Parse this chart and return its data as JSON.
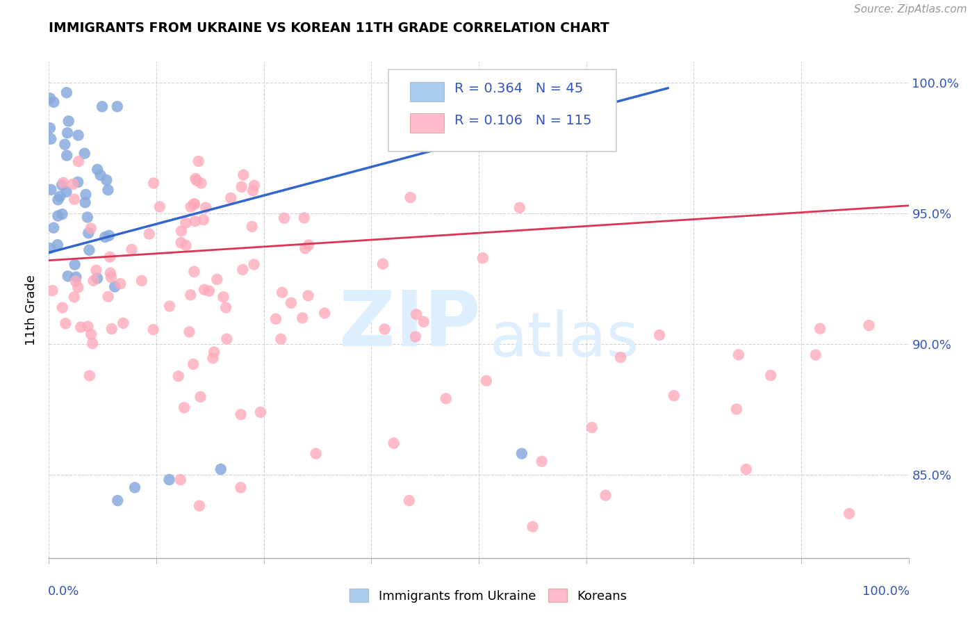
{
  "title": "IMMIGRANTS FROM UKRAINE VS KOREAN 11TH GRADE CORRELATION CHART",
  "source": "Source: ZipAtlas.com",
  "ylabel": "11th Grade",
  "legend_blue_label": "Immigrants from Ukraine",
  "legend_pink_label": "Koreans",
  "R_blue": 0.364,
  "N_blue": 45,
  "R_pink": 0.106,
  "N_pink": 115,
  "blue_scatter_color": "#88aadd",
  "pink_scatter_color": "#ffaabb",
  "blue_line_color": "#3366cc",
  "pink_line_color": "#dd3355",
  "legend_patch_blue": "#aaccee",
  "legend_patch_pink": "#ffbbcc",
  "text_blue": "#3355bb",
  "watermark_color": "#ddeeff",
  "grid_color": "#cccccc",
  "tick_label_color": "#3355bb",
  "xlim": [
    0.0,
    1.0
  ],
  "ylim_low": 0.818,
  "ylim_high": 1.008,
  "yticks": [
    0.85,
    0.9,
    0.95,
    1.0
  ],
  "ytick_labels": [
    "85.0%",
    "90.0%",
    "95.0%",
    "100.0%"
  ],
  "blue_line_x": [
    0.0,
    0.72
  ],
  "blue_line_y": [
    0.935,
    0.998
  ],
  "pink_line_x": [
    0.0,
    1.0
  ],
  "pink_line_y": [
    0.932,
    0.953
  ]
}
